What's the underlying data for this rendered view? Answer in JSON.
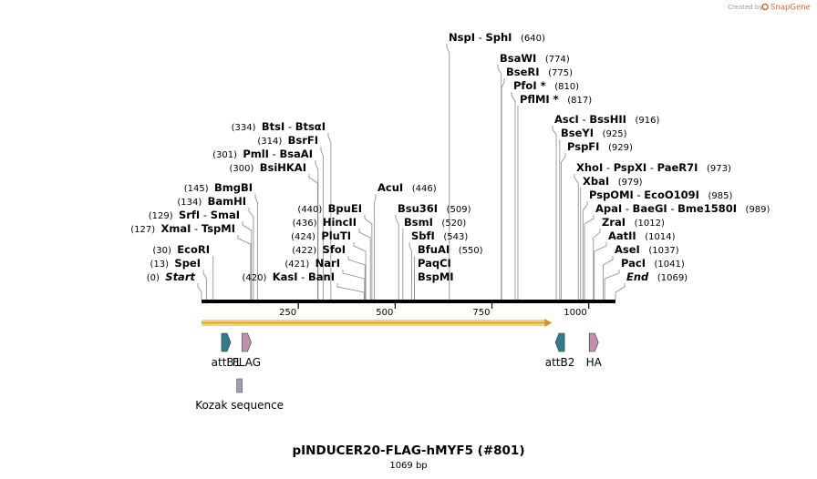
{
  "branding": {
    "created_by": "Created by",
    "brand": "SnapGene"
  },
  "map": {
    "title": "pINDUCER20-FLAG-hMYF5 (#801)",
    "length_label": "1069 bp",
    "total_bp": 1069,
    "ruler_ticks": [
      {
        "bp": 250,
        "label": "250"
      },
      {
        "bp": 500,
        "label": "500"
      },
      {
        "bp": 750,
        "label": "750"
      },
      {
        "bp": 1000,
        "label": "1000"
      }
    ]
  },
  "sites": [
    {
      "name": "sites-start",
      "pos": "(0)",
      "bp": 0,
      "left": true,
      "parts": [
        {
          "t": "Start",
          "italic": true
        }
      ]
    },
    {
      "name": "sites-spei",
      "pos": "(13)",
      "bp": 13,
      "left": true,
      "parts": [
        {
          "t": "SpeI"
        }
      ]
    },
    {
      "name": "sites-ecori",
      "pos": "(30)",
      "bp": 30,
      "left": true,
      "parts": [
        {
          "t": "EcoRI"
        }
      ]
    },
    {
      "name": "sites-xmai",
      "pos": "(127)",
      "bp": 127,
      "left": true,
      "parts": [
        {
          "t": "XmaI"
        },
        {
          "t": " - "
        },
        {
          "t": "TspMI"
        }
      ]
    },
    {
      "name": "sites-srfi",
      "pos": "(129)",
      "bp": 129,
      "left": true,
      "parts": [
        {
          "t": "SrfI"
        },
        {
          "t": " - "
        },
        {
          "t": "SmaI"
        }
      ]
    },
    {
      "name": "sites-bamhi",
      "pos": "(134)",
      "bp": 134,
      "left": true,
      "parts": [
        {
          "t": "BamHI"
        }
      ]
    },
    {
      "name": "sites-bmgbi",
      "pos": "(145)",
      "bp": 145,
      "left": true,
      "parts": [
        {
          "t": "BmgBI"
        }
      ]
    },
    {
      "name": "sites-bsihkai",
      "pos": "(300)",
      "bp": 300,
      "left": true,
      "parts": [
        {
          "t": "BsiHKAI"
        }
      ]
    },
    {
      "name": "sites-pmli",
      "pos": "(301)",
      "bp": 301,
      "left": true,
      "parts": [
        {
          "t": "PmlI"
        },
        {
          "t": " - "
        },
        {
          "t": "BsaAI"
        }
      ]
    },
    {
      "name": "sites-bsrfi",
      "pos": "(314)",
      "bp": 314,
      "left": true,
      "parts": [
        {
          "t": "BsrFI"
        }
      ]
    },
    {
      "name": "sites-btsi",
      "pos": "(334)",
      "bp": 334,
      "left": true,
      "parts": [
        {
          "t": "BtsI"
        },
        {
          "t": " - "
        },
        {
          "t": "BtsαI"
        }
      ]
    },
    {
      "name": "sites-kasi",
      "pos": "(420)",
      "bp": 420,
      "left": true,
      "parts": [
        {
          "t": "KasI"
        },
        {
          "t": " - "
        },
        {
          "t": "BanI"
        }
      ]
    },
    {
      "name": "sites-nari",
      "pos": "(421)",
      "bp": 421,
      "left": true,
      "parts": [
        {
          "t": "NarI"
        }
      ]
    },
    {
      "name": "sites-sfoi",
      "pos": "(422)",
      "bp": 422,
      "left": true,
      "parts": [
        {
          "t": "SfoI"
        }
      ]
    },
    {
      "name": "sites-pluti",
      "pos": "(424)",
      "bp": 424,
      "left": true,
      "parts": [
        {
          "t": "PluTI"
        }
      ]
    },
    {
      "name": "sites-hincii",
      "pos": "(436)",
      "bp": 436,
      "left": true,
      "parts": [
        {
          "t": "HincII"
        }
      ]
    },
    {
      "name": "sites-bpuei",
      "pos": "(440)",
      "bp": 440,
      "left": true,
      "parts": [
        {
          "t": "BpuEI"
        }
      ]
    },
    {
      "name": "sites-acui",
      "pos": "(446)",
      "bp": 446,
      "left": false,
      "parts": [
        {
          "t": "AcuI"
        }
      ]
    },
    {
      "name": "sites-bsu36i",
      "pos": "(509)",
      "bp": 509,
      "left": false,
      "parts": [
        {
          "t": "Bsu36I"
        }
      ]
    },
    {
      "name": "sites-bsmi",
      "pos": "(520)",
      "bp": 520,
      "left": false,
      "parts": [
        {
          "t": "BsmI"
        }
      ]
    },
    {
      "name": "sites-sbfi",
      "pos": "(543)",
      "bp": 543,
      "left": false,
      "parts": [
        {
          "t": "SbfI"
        }
      ]
    },
    {
      "name": "sites-bfuai",
      "pos": "(550)",
      "bp": 550,
      "left": false,
      "parts": [
        {
          "t": "BfuAI"
        }
      ]
    },
    {
      "name": "sites-paqci",
      "pos": "",
      "bp": 550,
      "left": false,
      "parts": [
        {
          "t": "PaqCI"
        }
      ]
    },
    {
      "name": "sites-bspmi",
      "pos": "",
      "bp": 550,
      "left": false,
      "parts": [
        {
          "t": "BspMI"
        }
      ]
    },
    {
      "name": "sites-nspi",
      "pos": "(640)",
      "bp": 640,
      "left": false,
      "parts": [
        {
          "t": "NspI"
        },
        {
          "t": " - "
        },
        {
          "t": "SphI"
        }
      ]
    },
    {
      "name": "sites-bsawi",
      "pos": "(774)",
      "bp": 774,
      "left": false,
      "parts": [
        {
          "t": "BsaWI"
        }
      ]
    },
    {
      "name": "sites-bseri",
      "pos": "(775)",
      "bp": 775,
      "left": false,
      "parts": [
        {
          "t": "BseRI"
        }
      ]
    },
    {
      "name": "sites-pfoi",
      "pos": "(810)",
      "bp": 810,
      "left": false,
      "parts": [
        {
          "t": "PfoI *"
        }
      ]
    },
    {
      "name": "sites-pflmi",
      "pos": "(817)",
      "bp": 817,
      "left": false,
      "parts": [
        {
          "t": "PflMI *"
        }
      ]
    },
    {
      "name": "sites-asci",
      "pos": "(916)",
      "bp": 916,
      "left": false,
      "parts": [
        {
          "t": "AscI"
        },
        {
          "t": " - "
        },
        {
          "t": "BssHII"
        }
      ]
    },
    {
      "name": "sites-bseyi",
      "pos": "(925)",
      "bp": 925,
      "left": false,
      "parts": [
        {
          "t": "BseYI"
        }
      ]
    },
    {
      "name": "sites-pspfi",
      "pos": "(929)",
      "bp": 929,
      "left": false,
      "parts": [
        {
          "t": "PspFI"
        }
      ]
    },
    {
      "name": "sites-xhoi",
      "pos": "(973)",
      "bp": 973,
      "left": false,
      "parts": [
        {
          "t": "XhoI"
        },
        {
          "t": " - "
        },
        {
          "t": "PspXI"
        },
        {
          "t": " - "
        },
        {
          "t": "PaeR7I"
        }
      ]
    },
    {
      "name": "sites-xbai",
      "pos": "(979)",
      "bp": 979,
      "left": false,
      "parts": [
        {
          "t": "XbaI"
        }
      ]
    },
    {
      "name": "sites-pspomi",
      "pos": "(985)",
      "bp": 985,
      "left": false,
      "parts": [
        {
          "t": "PspOMI"
        },
        {
          "t": " - "
        },
        {
          "t": "EcoO109I"
        }
      ]
    },
    {
      "name": "sites-apai",
      "pos": "(989)",
      "bp": 989,
      "left": false,
      "parts": [
        {
          "t": "ApaI"
        },
        {
          "t": " - "
        },
        {
          "t": "BaeGI"
        },
        {
          "t": " - "
        },
        {
          "t": "Bme1580I"
        }
      ]
    },
    {
      "name": "sites-zrai",
      "pos": "(1012)",
      "bp": 1012,
      "left": false,
      "parts": [
        {
          "t": "ZraI"
        }
      ]
    },
    {
      "name": "sites-aatii",
      "pos": "(1014)",
      "bp": 1014,
      "left": false,
      "parts": [
        {
          "t": "AatII"
        }
      ]
    },
    {
      "name": "sites-asei",
      "pos": "(1037)",
      "bp": 1037,
      "left": false,
      "parts": [
        {
          "t": "AseI"
        }
      ]
    },
    {
      "name": "sites-paci",
      "pos": "(1041)",
      "bp": 1041,
      "left": false,
      "parts": [
        {
          "t": "PacI"
        }
      ]
    },
    {
      "name": "sites-end",
      "pos": "(1069)",
      "bp": 1069,
      "left": false,
      "parts": [
        {
          "t": "End",
          "italic": true
        }
      ]
    }
  ],
  "features": [
    {
      "name": "attb1",
      "label": "attB1",
      "start_bp": 52,
      "end_bp": 75,
      "color": "#2e7d91"
    },
    {
      "name": "flag",
      "label": "FLAG",
      "start_bp": 105,
      "end_bp": 128,
      "color": "#c48fad"
    },
    {
      "name": "attb2",
      "label": "attB2",
      "start_bp": 913,
      "end_bp": 938,
      "color": "#2e7d91"
    },
    {
      "name": "ha",
      "label": "HA",
      "start_bp": 1000,
      "end_bp": 1026,
      "color": "#c48fad"
    },
    {
      "name": "kozak",
      "label": "Kozak sequence",
      "start_bp": 92,
      "end_bp": 104,
      "color": "#9aa0ad"
    }
  ],
  "orf": {
    "start_bp": 0,
    "end_bp": 905,
    "fill": "#f0d27a",
    "edge": "#c79a2a"
  },
  "colors": {
    "brand": "#e06a3a",
    "text": "#000000",
    "stem": "#888888",
    "backbone": "#000000"
  }
}
